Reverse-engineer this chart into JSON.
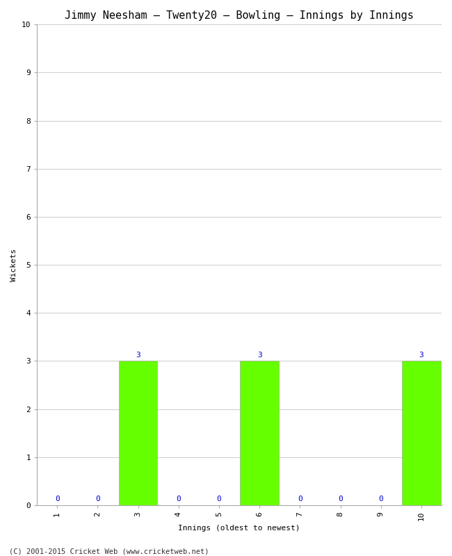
{
  "title": "Jimmy Neesham – Twenty20 – Bowling – Innings by Innings",
  "xlabel": "Innings (oldest to newest)",
  "ylabel": "Wickets",
  "footnote": "(C) 2001-2015 Cricket Web (www.cricketweb.net)",
  "categories": [
    "1",
    "2",
    "3",
    "4",
    "5",
    "6",
    "7",
    "8",
    "9",
    "10"
  ],
  "values": [
    0,
    0,
    3,
    0,
    0,
    3,
    0,
    0,
    0,
    3
  ],
  "bar_color_zero": "#f0f0f0",
  "bar_color_nonzero": "#66ff00",
  "bar_edge_color": "#aaaaaa",
  "label_color": "#0000cc",
  "ylim": [
    0,
    10
  ],
  "yticks": [
    0,
    1,
    2,
    3,
    4,
    5,
    6,
    7,
    8,
    9,
    10
  ],
  "background_color": "#ffffff",
  "grid_color": "#cccccc",
  "title_fontsize": 11,
  "axis_label_fontsize": 8,
  "tick_fontsize": 8,
  "annotation_fontsize": 8,
  "footnote_fontsize": 7.5
}
